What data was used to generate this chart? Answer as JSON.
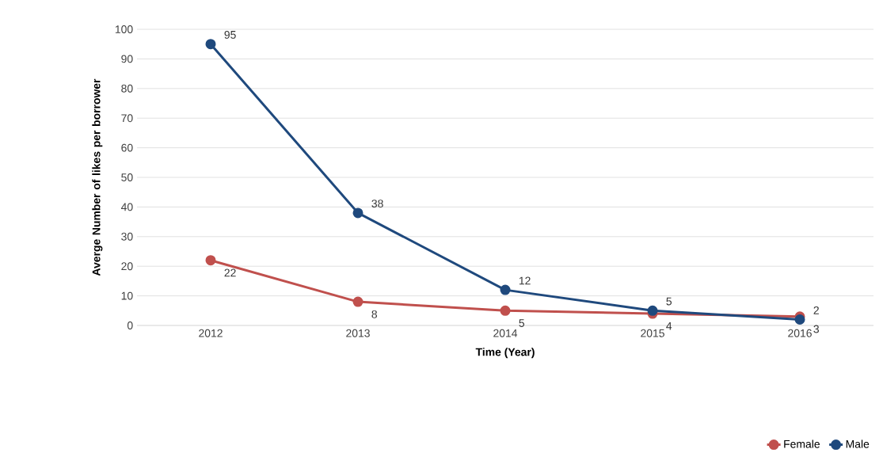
{
  "chart_data": {
    "type": "line",
    "xlabel": "Time (Year)",
    "ylabel": "Averge  Number of likes per borrower",
    "categories": [
      "2012",
      "2013",
      "2014",
      "2015",
      "2016"
    ],
    "series": [
      {
        "name": "Female",
        "color": "#c0504d",
        "values": [
          22,
          8,
          5,
          4,
          3
        ]
      },
      {
        "name": "Male",
        "color": "#1f497d",
        "values": [
          95,
          38,
          12,
          5,
          2
        ]
      }
    ],
    "ylim": [
      0,
      100
    ],
    "yticks": [
      0,
      10,
      20,
      30,
      40,
      50,
      60,
      70,
      80,
      90,
      100
    ],
    "grid": "y",
    "legend": "bottom right",
    "marker": "circle",
    "line_style": "solid",
    "data_labels": true
  }
}
